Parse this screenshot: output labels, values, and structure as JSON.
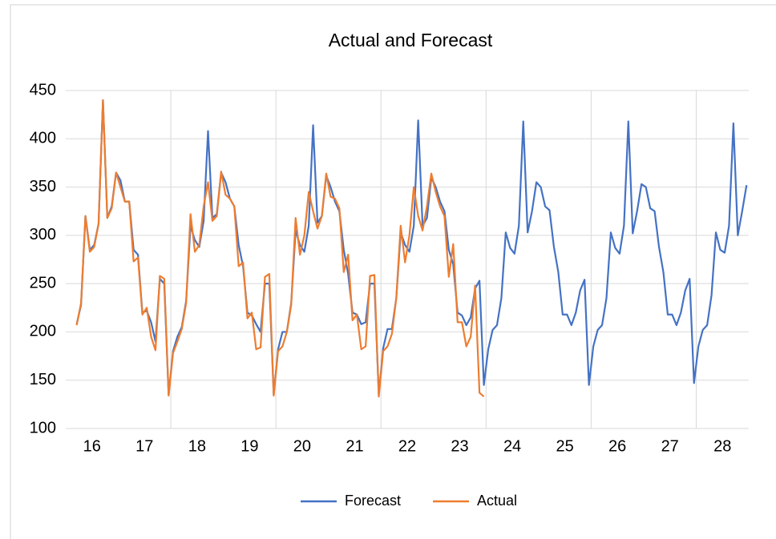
{
  "chart_data": {
    "type": "line",
    "title": "Actual and Forecast",
    "categories": [
      null,
      null,
      null,
      null,
      null,
      "16",
      null,
      null,
      null,
      null,
      null,
      null,
      null,
      null,
      null,
      null,
      null,
      "17",
      null,
      null,
      null,
      null,
      null,
      null,
      null,
      null,
      null,
      null,
      null,
      "18",
      null,
      null,
      null,
      null,
      null,
      null,
      null,
      null,
      null,
      null,
      null,
      "19",
      null,
      null,
      null,
      null,
      null,
      null,
      null,
      null,
      null,
      null,
      null,
      "20",
      null,
      null,
      null,
      null,
      null,
      null,
      null,
      null,
      null,
      null,
      null,
      "21",
      null,
      null,
      null,
      null,
      null,
      null,
      null,
      null,
      null,
      null,
      null,
      "22",
      null,
      null,
      null,
      null,
      null,
      null,
      null,
      null,
      null,
      null,
      null,
      "23",
      null,
      null,
      null,
      null,
      null,
      null,
      null,
      null,
      null,
      null,
      null,
      "24",
      null,
      null,
      null,
      null,
      null,
      null,
      null,
      null,
      null,
      null,
      null,
      "25",
      null,
      null,
      null,
      null,
      null,
      null,
      null,
      null,
      null,
      null,
      null,
      "26",
      null,
      null,
      null,
      null,
      null,
      null,
      null,
      null,
      null,
      null,
      null,
      "27",
      null,
      null,
      null,
      null,
      null,
      null,
      null,
      null,
      null,
      null,
      null,
      "28",
      null,
      null,
      null,
      null,
      null,
      null
    ],
    "series": [
      {
        "name": "Forecast",
        "color": "#4472c4",
        "values": [
          null,
          null,
          208,
          228,
          320,
          285,
          290,
          312,
          440,
          318,
          330,
          365,
          357,
          335,
          335,
          285,
          280,
          220,
          222,
          210,
          190,
          255,
          250,
          135,
          180,
          195,
          205,
          232,
          310,
          295,
          288,
          315,
          408,
          318,
          322,
          365,
          355,
          338,
          330,
          290,
          268,
          220,
          217,
          208,
          200,
          250,
          250,
          135,
          182,
          200,
          200,
          230,
          305,
          290,
          283,
          310,
          414,
          313,
          320,
          362,
          350,
          335,
          325,
          285,
          260,
          220,
          218,
          208,
          210,
          250,
          250,
          135,
          183,
          203,
          203,
          235,
          303,
          290,
          283,
          310,
          419,
          310,
          318,
          360,
          350,
          335,
          325,
          285,
          270,
          220,
          217,
          207,
          215,
          245,
          253,
          145,
          182,
          202,
          207,
          235,
          303,
          287,
          281,
          310,
          418,
          303,
          325,
          355,
          350,
          330,
          326,
          288,
          262,
          218,
          218,
          207,
          220,
          243,
          254,
          145,
          185,
          202,
          207,
          235,
          303,
          287,
          281,
          310,
          418,
          302,
          325,
          353,
          350,
          328,
          325,
          288,
          262,
          218,
          218,
          207,
          220,
          243,
          255,
          147,
          185,
          202,
          207,
          238,
          303,
          285,
          282,
          310,
          416,
          300,
          325,
          352
        ]
      },
      {
        "name": "Actual",
        "color": "#ed7d31",
        "values": [
          null,
          null,
          207,
          230,
          320,
          283,
          288,
          312,
          440,
          318,
          328,
          365,
          350,
          335,
          335,
          273,
          277,
          218,
          225,
          195,
          181,
          258,
          255,
          134,
          178,
          190,
          203,
          230,
          322,
          283,
          290,
          330,
          355,
          315,
          320,
          366,
          342,
          338,
          330,
          268,
          272,
          214,
          220,
          182,
          184,
          257,
          260,
          134,
          180,
          185,
          200,
          228,
          318,
          280,
          300,
          345,
          325,
          307,
          320,
          364,
          340,
          338,
          328,
          262,
          280,
          212,
          218,
          182,
          185,
          258,
          259,
          133,
          180,
          185,
          198,
          235,
          310,
          272,
          300,
          350,
          320,
          305,
          330,
          364,
          345,
          330,
          320,
          257,
          291,
          210,
          210,
          185,
          195,
          248,
          137,
          133,
          null,
          null,
          null,
          null,
          null,
          null,
          null,
          null,
          null,
          null,
          null,
          null,
          null,
          null,
          null,
          null,
          null,
          null,
          null,
          null,
          null,
          null,
          null,
          null,
          null,
          null,
          null,
          null,
          null,
          null,
          null,
          null,
          null,
          null,
          null,
          null,
          null,
          null,
          null,
          null,
          null,
          null,
          null,
          null,
          null,
          null,
          null,
          null,
          null,
          null,
          null,
          null,
          null,
          null,
          null,
          null,
          null,
          null,
          null,
          null
        ]
      }
    ],
    "ylim": [
      100,
      450
    ],
    "yticks": [
      100,
      150,
      200,
      250,
      300,
      350,
      400,
      450
    ],
    "grid": true,
    "legend": "bottom"
  }
}
